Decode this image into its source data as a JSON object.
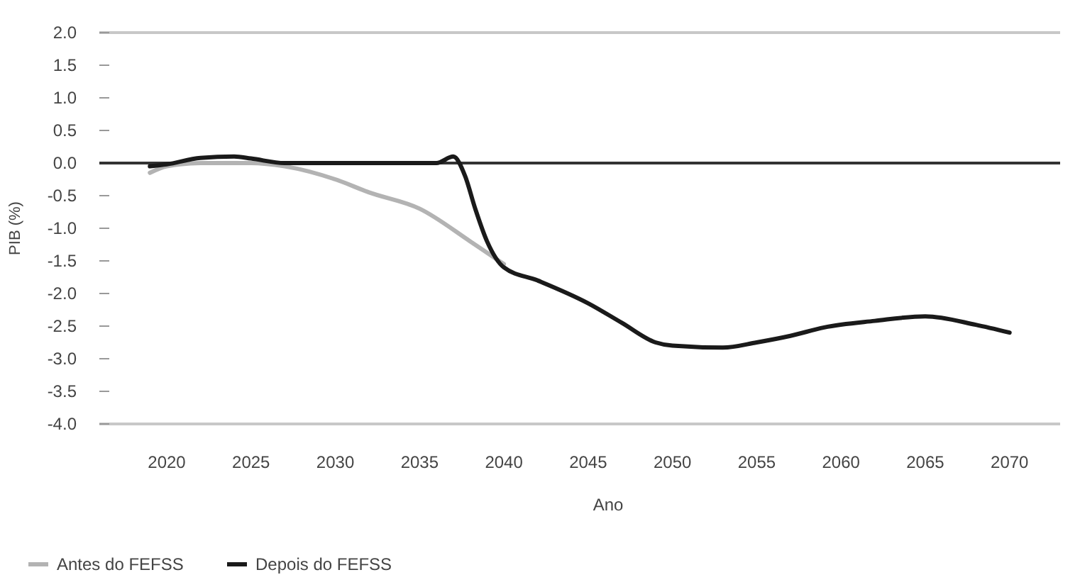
{
  "chart_data": {
    "type": "line",
    "xlabel": "Ano",
    "ylabel": "PIB (%)",
    "xlim": [
      2016,
      2073
    ],
    "xticks": [
      2020,
      2025,
      2030,
      2035,
      2040,
      2045,
      2050,
      2055,
      2060,
      2065,
      2070
    ],
    "ylim": [
      -4.0,
      2.0
    ],
    "yticks": [
      {
        "value": 2,
        "label": "2.0"
      },
      {
        "value": 1.5,
        "label": "1.5"
      },
      {
        "value": 1,
        "label": "1.0"
      },
      {
        "value": 0.5,
        "label": "0.5"
      },
      {
        "value": 0,
        "label": "0.0"
      },
      {
        "value": -0.5,
        "label": "-0.5"
      },
      {
        "value": -1,
        "label": "-1.0"
      },
      {
        "value": -1.5,
        "label": "-1.5"
      },
      {
        "value": -2,
        "label": "-2.0"
      },
      {
        "value": -2.5,
        "label": "-2.5"
      },
      {
        "value": -3,
        "label": "-3.0"
      },
      {
        "value": -3.5,
        "label": "-3.5"
      },
      {
        "value": -4,
        "label": "-4.0"
      }
    ],
    "ref_lines": [
      {
        "axis": "y",
        "value": 0,
        "color": "#333333"
      }
    ],
    "legend": "bottom left",
    "series": [
      {
        "name": "Antes do FEFSS",
        "color": "#b3b3b3",
        "x": [
          2019,
          2020,
          2022,
          2025,
          2027,
          2030,
          2032,
          2035,
          2038,
          2040
        ],
        "values": [
          -0.15,
          -0.05,
          0.0,
          0.0,
          -0.05,
          -0.25,
          -0.45,
          -0.7,
          -1.2,
          -1.55
        ]
      },
      {
        "name": "Depois do FEFSS",
        "color": "#1a1a1a",
        "x": [
          2019,
          2020,
          2022,
          2024,
          2025,
          2027,
          2030,
          2036,
          2037,
          2037.7,
          2038.3,
          2039,
          2040,
          2042,
          2045,
          2047,
          2049,
          2050,
          2053,
          2055,
          2057,
          2059,
          2062,
          2065,
          2068,
          2070
        ],
        "values": [
          -0.05,
          -0.02,
          0.08,
          0.1,
          0.07,
          0.0,
          0.0,
          0.0,
          0.1,
          -0.2,
          -0.7,
          -1.2,
          -1.6,
          -1.8,
          -2.15,
          -2.45,
          -2.75,
          -2.8,
          -2.83,
          -2.75,
          -2.65,
          -2.52,
          -2.42,
          -2.35,
          -2.48,
          -2.6
        ]
      }
    ]
  }
}
